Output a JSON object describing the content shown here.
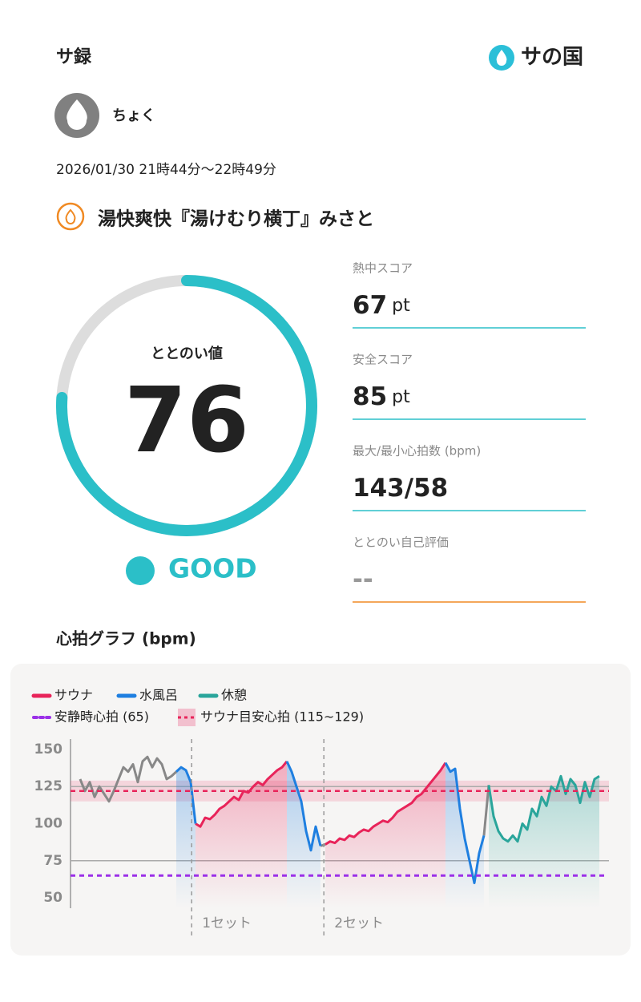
{
  "header": {
    "title": "サ録",
    "logo": "サの国"
  },
  "user": {
    "name": "ちょく"
  },
  "datetime": "2026/01/30 21時44分〜22時49分",
  "facility": "湯快爽快『湯けむり横丁』みさと",
  "totonoi": {
    "label": "ととのい値",
    "value": 76,
    "range": [
      0,
      100
    ],
    "rating": "GOOD"
  },
  "scores": [
    {
      "label": "熱中スコア",
      "value": 67,
      "unit": "pt"
    },
    {
      "label": "安全スコア",
      "value": 85,
      "unit": "pt"
    },
    {
      "label": "最大/最小心拍数 (bpm)",
      "value": "143/58"
    },
    {
      "label": "ととのい自己評価",
      "value": "--"
    }
  ],
  "chart_data": {
    "type": "line",
    "title": "心拍グラフ (bpm)",
    "ylim": [
      43,
      157
    ],
    "yticks": [
      150,
      125,
      100,
      75,
      50
    ],
    "reference_lines": [
      125,
      75
    ],
    "resting": {
      "label": "安静時心拍 (65)",
      "value": 65,
      "color": "#9b30e8"
    },
    "target": {
      "label": "サウナ目安心拍 (115~129)",
      "range": [
        115,
        129
      ],
      "color": "#e8245a"
    },
    "sets": [
      {
        "label": "1セット",
        "x": 23.2
      },
      {
        "label": "2セット",
        "x": 50.7
      }
    ],
    "series": [
      {
        "color": "#888888",
        "values": [
          130,
          122,
          128,
          118,
          125,
          120,
          115,
          122,
          130,
          138,
          135,
          140,
          128,
          142,
          145,
          138,
          144,
          140,
          130,
          132,
          135,
          null,
          null,
          null,
          null,
          null,
          null,
          null,
          null,
          null,
          null,
          null,
          null,
          null,
          null,
          null,
          null,
          null,
          null,
          null,
          null,
          null,
          null,
          null,
          null,
          null,
          null,
          null,
          null,
          null,
          85,
          86,
          null,
          null,
          null,
          null,
          null,
          null,
          null,
          null,
          null,
          null,
          null,
          null,
          null,
          null,
          null,
          null,
          null,
          null,
          null,
          null,
          null,
          null,
          null,
          null,
          null,
          null,
          null,
          null,
          null,
          null,
          null,
          null,
          92,
          126,
          null,
          null,
          null,
          null,
          null,
          null,
          null,
          null,
          null,
          null,
          null,
          null,
          null,
          null,
          null,
          null,
          null,
          null,
          null,
          null,
          null,
          null,
          null
        ]
      },
      {
        "name": "サウナ",
        "color": "#e8245a",
        "area": true,
        "values": [
          null,
          null,
          null,
          null,
          null,
          null,
          null,
          null,
          null,
          null,
          null,
          null,
          null,
          null,
          null,
          null,
          null,
          null,
          null,
          null,
          null,
          null,
          null,
          null,
          100,
          98,
          104,
          103,
          106,
          110,
          112,
          115,
          118,
          116,
          122,
          121,
          125,
          128,
          126,
          130,
          133,
          136,
          138,
          142,
          null,
          null,
          null,
          null,
          null,
          null,
          null,
          86,
          88,
          87,
          90,
          89,
          92,
          91,
          94,
          96,
          95,
          98,
          100,
          102,
          101,
          104,
          108,
          110,
          112,
          114,
          118,
          120,
          124,
          128,
          132,
          136,
          141,
          null,
          null,
          null,
          null,
          null,
          null,
          null,
          null,
          null,
          null,
          null,
          null,
          null,
          null,
          null,
          null,
          null,
          null,
          null,
          null,
          null,
          null,
          null,
          null,
          null,
          null,
          null,
          null,
          null,
          null,
          null,
          null
        ]
      },
      {
        "name": "水風呂",
        "color": "#1f7fe0",
        "area": true,
        "values": [
          null,
          null,
          null,
          null,
          null,
          null,
          null,
          null,
          null,
          null,
          null,
          null,
          null,
          null,
          null,
          null,
          null,
          null,
          null,
          null,
          135,
          138,
          136,
          128,
          100,
          null,
          null,
          null,
          null,
          null,
          null,
          null,
          null,
          null,
          null,
          null,
          null,
          null,
          null,
          null,
          null,
          null,
          null,
          142,
          135,
          125,
          115,
          95,
          82,
          98,
          85,
          null,
          null,
          null,
          null,
          null,
          null,
          null,
          null,
          null,
          null,
          null,
          null,
          null,
          null,
          null,
          null,
          null,
          null,
          null,
          null,
          null,
          null,
          null,
          null,
          null,
          141,
          135,
          137,
          110,
          90,
          75,
          60,
          80,
          92,
          null,
          null,
          null,
          null,
          null,
          null,
          null,
          null,
          null,
          null,
          null,
          null,
          null,
          null,
          null,
          null,
          null,
          null,
          null,
          null,
          null,
          null,
          null,
          null
        ]
      },
      {
        "name": "休憩",
        "color": "#2aa59b",
        "area": true,
        "values": [
          null,
          null,
          null,
          null,
          null,
          null,
          null,
          null,
          null,
          null,
          null,
          null,
          null,
          null,
          null,
          null,
          null,
          null,
          null,
          null,
          null,
          null,
          null,
          null,
          null,
          null,
          null,
          null,
          null,
          null,
          null,
          null,
          null,
          null,
          null,
          null,
          null,
          null,
          null,
          null,
          null,
          null,
          null,
          null,
          null,
          null,
          null,
          null,
          null,
          null,
          null,
          null,
          null,
          null,
          null,
          null,
          null,
          null,
          null,
          null,
          null,
          null,
          null,
          null,
          null,
          null,
          null,
          null,
          null,
          null,
          null,
          null,
          null,
          null,
          null,
          null,
          null,
          null,
          null,
          null,
          null,
          null,
          null,
          null,
          null,
          126,
          105,
          95,
          90,
          88,
          92,
          88,
          100,
          96,
          110,
          105,
          118,
          112,
          125,
          122,
          132,
          120,
          130,
          126,
          114,
          128,
          118,
          130,
          132
        ]
      }
    ]
  }
}
